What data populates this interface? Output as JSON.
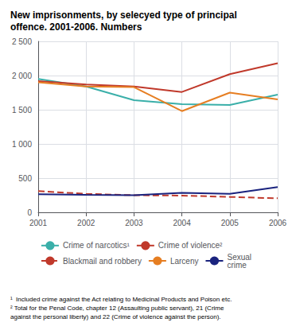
{
  "chart_data": {
    "type": "line",
    "title": "New imprisonments, by selecyed type of principal\noffence. 2001-2006. Numbers",
    "categories": [
      "2001",
      "2002",
      "2003",
      "2004",
      "2005",
      "2006"
    ],
    "series": [
      {
        "name": "Crime of narcotics¹",
        "color": "#3aafa9",
        "line_style": "solid",
        "values": [
          1950,
          1840,
          1640,
          1580,
          1570,
          1720
        ]
      },
      {
        "name": "Crime of violence²",
        "color": "#c0392b",
        "line_style": "solid",
        "values": [
          1920,
          1870,
          1840,
          1760,
          2020,
          2180
        ]
      },
      {
        "name": "Blackmail and robbery",
        "color": "#c0392b",
        "line_style": "dashed",
        "values": [
          310,
          270,
          250,
          245,
          225,
          205
        ]
      },
      {
        "name": "Larceny",
        "color": "#e67e22",
        "line_style": "solid",
        "values": [
          1900,
          1840,
          1830,
          1480,
          1750,
          1650
        ]
      },
      {
        "name": "Sexual\ncrime",
        "color": "#1a237e",
        "line_style": "solid",
        "values": [
          265,
          255,
          250,
          285,
          270,
          370
        ]
      }
    ],
    "ylim": [
      0,
      2500
    ],
    "yticks": [
      0,
      500,
      {
        "value": 1000,
        "label": "1 000"
      },
      {
        "value": 1500,
        "label": "1 500"
      },
      {
        "value": 2000,
        "label": "2 000"
      },
      {
        "value": 2500,
        "label": "2 500"
      }
    ],
    "grid": true,
    "legend": "bottom",
    "annotations": [
      "¹  Included crime against the Act relating to Medicinal Products and Poison etc.",
      "² Total for the Penal Code, chapter 12 (Assaulting public servant), 21 (Crime\nagainst the personal liberty) and 22 (Crime of violence against the person)."
    ]
  }
}
